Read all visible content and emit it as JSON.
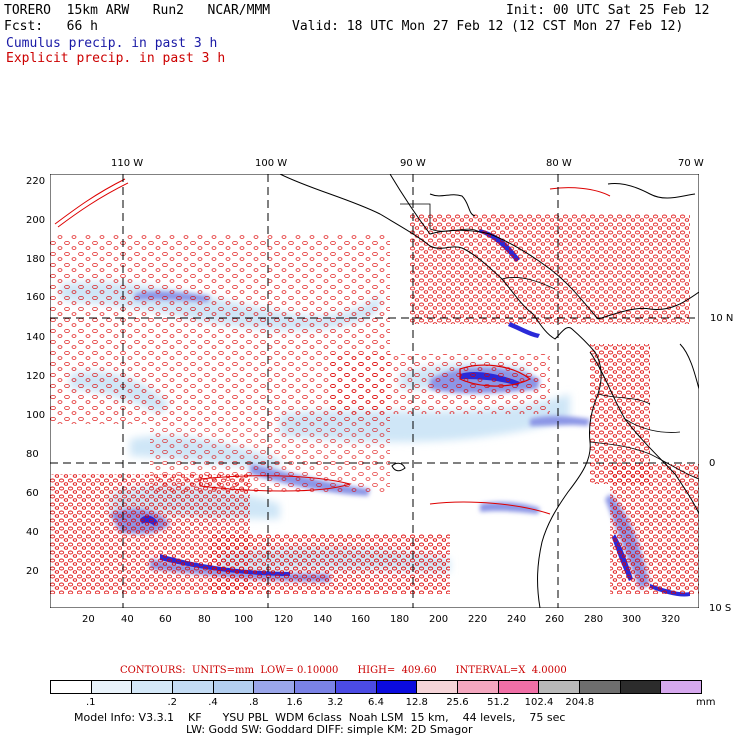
{
  "header": {
    "line1_left": "TORERO  15km ARW   Run2   NCAR/MMM",
    "line1_right": "Init: 00 UTC Sat 25 Feb 12",
    "line2_left": "Fcst:   66 h",
    "line2_right": "Valid: 18 UTC Mon 27 Feb 12 (12 CST Mon 27 Feb 12)",
    "cumulus_label": "Cumulus precip. in past 3 h",
    "explicit_label": "Explicit precip. in past 3 h"
  },
  "map": {
    "lon_labels": [
      "110 W",
      "100 W",
      "90 W",
      "80 W",
      "70 W"
    ],
    "lat_labels": [
      "10 N",
      "0",
      "10 S"
    ],
    "y_ticks": [
      "220",
      "200",
      "180",
      "160",
      "140",
      "120",
      "100",
      "80",
      "60",
      "40",
      "20"
    ],
    "x_ticks": [
      "20",
      "40",
      "60",
      "80",
      "100",
      "120",
      "140",
      "160",
      "180",
      "200",
      "220",
      "240",
      "260",
      "280",
      "300",
      "320"
    ],
    "colors": {
      "coast": "#000000",
      "grid": "#000000",
      "explicit": "#dd0000",
      "cumulus_light": "#cfe6f7",
      "cumulus_mid": "#8c96e6",
      "cumulus_dark": "#2a2ad8"
    }
  },
  "legend": {
    "contours_line": "CONTOURS:  UNITS=mm  LOW= 0.10000      HIGH=  409.60      INTERVAL=X  4.0000",
    "bins": [
      "#ffffff",
      "#e9f3fb",
      "#d4e8f8",
      "#c4dcf4",
      "#b3cff0",
      "#9aa6ea",
      "#7a82e6",
      "#4b4be4",
      "#0b0bde",
      "#f5d4d8",
      "#f4a7bf",
      "#f06fa6",
      "#b8b8b8",
      "#6e6e6e",
      "#2c2c2c",
      "#d6a8ee"
    ],
    "labels": [
      ".1",
      ".2",
      ".4",
      ".8",
      "1.6",
      "3.2",
      "6.4",
      "12.8",
      "25.6",
      "51.2",
      "102.4",
      "204.8"
    ],
    "unit": "mm"
  },
  "model_info": {
    "line1": "Model Info: V3.3.1    KF      YSU PBL  WDM 6class  Noah LSM  15 km,    44 levels,    75 sec",
    "line2": "LW: Godd SW: Goddard DIFF: simple KM: 2D Smagor"
  }
}
